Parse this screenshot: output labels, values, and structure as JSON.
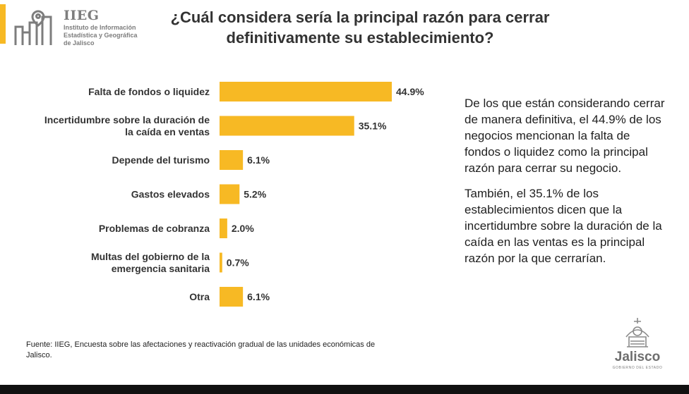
{
  "header": {
    "logo_acronym": "IIEG",
    "logo_line1": "Instituto de Información",
    "logo_line2": "Estadística y Geográfica",
    "logo_line3": "de Jalisco",
    "title_line1": "¿Cuál considera sería la principal razón para cerrar",
    "title_line2": "definitivamente su establecimiento?"
  },
  "chart_data": {
    "type": "bar",
    "orientation": "horizontal",
    "categories": [
      [
        "Falta de fondos o liquidez"
      ],
      [
        "Incertidumbre sobre la duración de",
        "la caída en ventas"
      ],
      [
        "Depende del turismo"
      ],
      [
        "Gastos elevados"
      ],
      [
        "Problemas de cobranza"
      ],
      [
        "Multas del gobierno de la",
        "emergencia sanitaria"
      ],
      [
        "Otra"
      ]
    ],
    "values": [
      44.9,
      35.1,
      6.1,
      5.2,
      2.0,
      0.7,
      6.1
    ],
    "value_labels": [
      "44.9%",
      "35.1%",
      "6.1%",
      "5.2%",
      "2.0%",
      "0.7%",
      "6.1%"
    ],
    "bar_color": "#f7b924",
    "grid": false
  },
  "side_text": {
    "paragraph1": "De los que están considerando cerrar de manera definitiva, el 44.9% de los negocios mencionan la falta de fondos o liquidez como la principal razón para cerrar su negocio.",
    "paragraph2": "También, el 35.1% de los establecimientos dicen que la incertidumbre sobre la duración de la caída en las ventas es la principal razón por la que cerrarían."
  },
  "footer": {
    "source_line1": "Fuente: IIEG, Encuesta sobre las afectaciones y reactivación gradual de las unidades económicas de",
    "source_line2": "Jalisco.",
    "brand_word": "Jalisco",
    "brand_sub": "GOBIERNO DEL ESTADO"
  },
  "colors": {
    "accent": "#f7b924",
    "logo_gray": "#7d7d7d",
    "bottom_band": "#111111"
  }
}
